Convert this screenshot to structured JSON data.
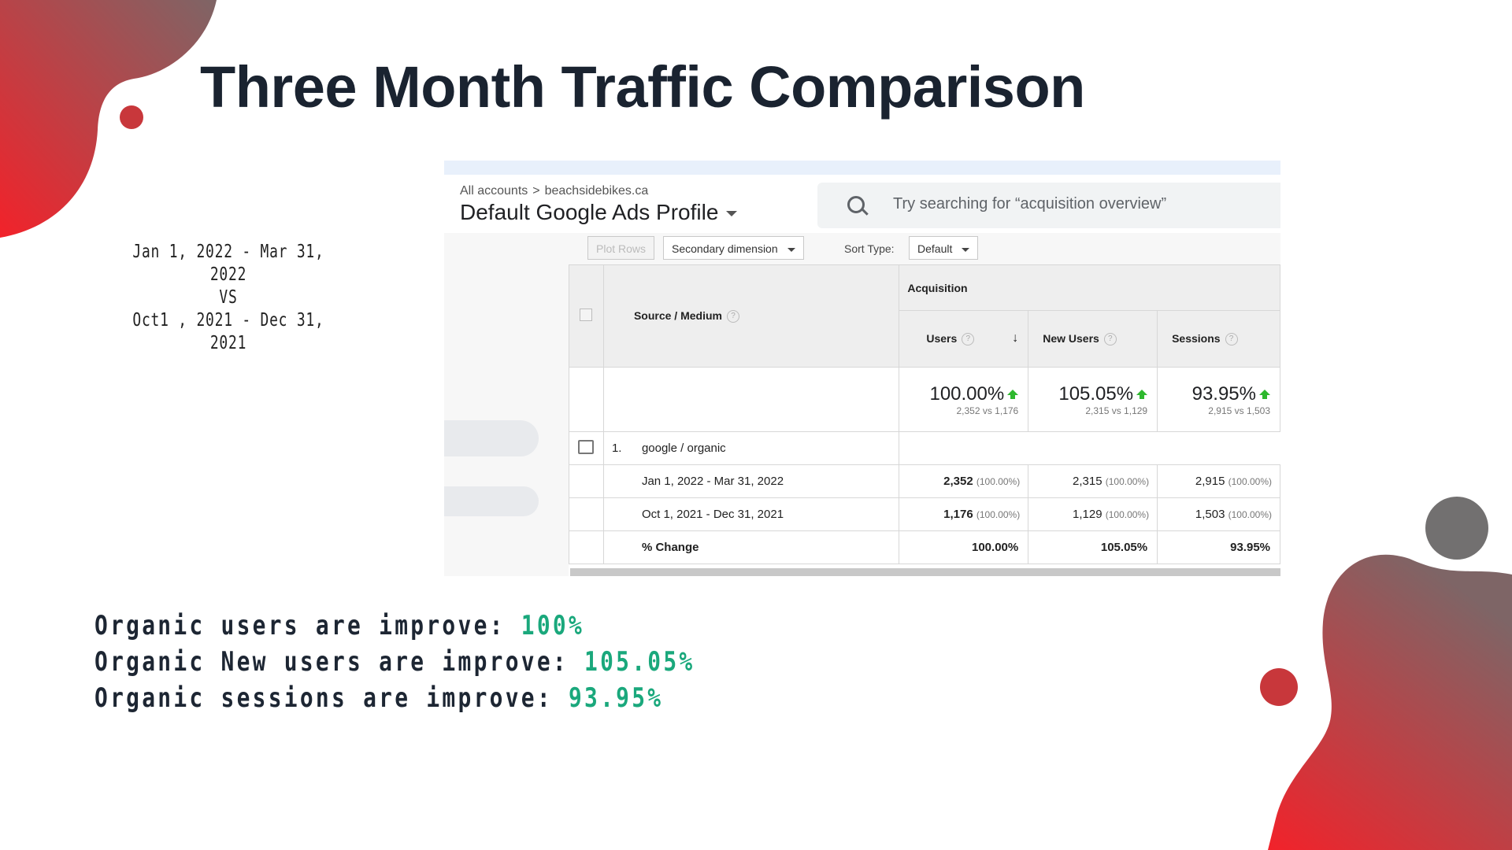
{
  "slide": {
    "title": "Three Month Traffic Comparison",
    "dates": {
      "range1": "Jan 1, 2022 - Mar 31, 2022",
      "vs": "VS",
      "range2": "Oct1 , 2021 - Dec 31, 2021"
    },
    "summary": [
      {
        "label": "Organic users are improve:",
        "value": "100%"
      },
      {
        "label": "Organic New users are improve:",
        "value": "105.05%"
      },
      {
        "label": "Organic sessions are improve:",
        "value": "93.95%"
      }
    ],
    "colors": {
      "accent_green": "#1aa87c",
      "blob_red": "#e8262b",
      "blob_grey": "#7a7070"
    }
  },
  "analytics": {
    "breadcrumb": {
      "root": "All accounts",
      "separator": ">",
      "property": "beachsidebikes.ca"
    },
    "profile": "Default Google Ads Profile",
    "search": {
      "placeholder": "Try searching for “acquisition overview”",
      "icon": "search-icon"
    },
    "controls": {
      "plot_rows": "Plot Rows",
      "secondary_dimension": "Secondary dimension",
      "sort_type_label": "Sort Type:",
      "sort_type_value": "Default"
    },
    "table": {
      "group_header": "Acquisition",
      "dimension_header": "Source / Medium",
      "columns": [
        "Users",
        "New Users",
        "Sessions"
      ],
      "totals": [
        {
          "change": "100.00%",
          "compare": "2,352 vs 1,176"
        },
        {
          "change": "105.05%",
          "compare": "2,315 vs 1,129"
        },
        {
          "change": "93.95%",
          "compare": "2,915 vs 1,503"
        }
      ],
      "row": {
        "index": "1.",
        "source": "google / organic",
        "sub_rows": [
          {
            "label": "Jan 1, 2022 - Mar 31, 2022",
            "values": [
              "2,352",
              "2,315",
              "2,915"
            ],
            "pcts": [
              "(100.00%)",
              "(100.00%)",
              "(100.00%)"
            ]
          },
          {
            "label": "Oct 1, 2021 - Dec 31, 2021",
            "values": [
              "1,176",
              "1,129",
              "1,503"
            ],
            "pcts": [
              "(100.00%)",
              "(100.00%)",
              "(100.00%)"
            ]
          },
          {
            "label": "% Change",
            "values": [
              "100.00%",
              "105.05%",
              "93.95%"
            ],
            "pcts": [
              "",
              "",
              ""
            ]
          }
        ]
      }
    }
  }
}
